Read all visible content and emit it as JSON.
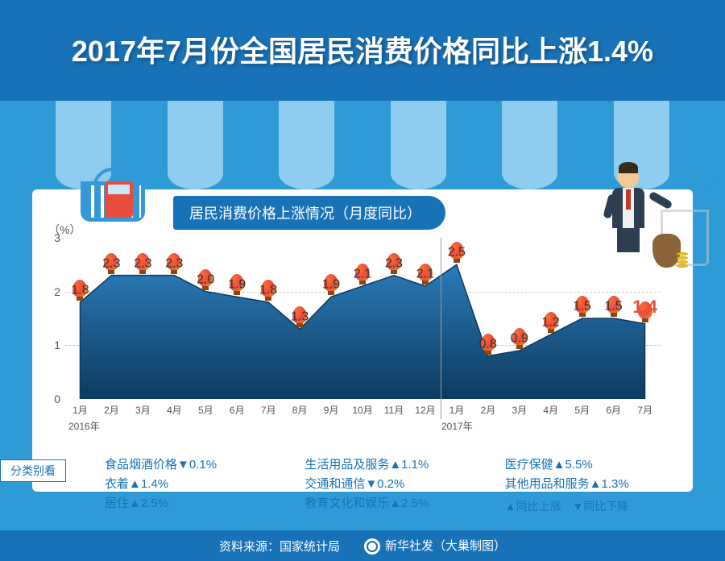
{
  "title": "2017年7月份全国居民消费价格同比上涨1.4%",
  "subtitle": "居民消费价格上涨情况（月度同比）",
  "chart": {
    "type": "area",
    "y_unit": "（%）",
    "ylim": [
      0,
      3
    ],
    "yticks": [
      0,
      1,
      2,
      3
    ],
    "months": [
      "1月",
      "2月",
      "3月",
      "4月",
      "5月",
      "6月",
      "7月",
      "8月",
      "9月",
      "10月",
      "11月",
      "12月",
      "1月",
      "2月",
      "3月",
      "4月",
      "5月",
      "6月",
      "7月"
    ],
    "year_labels": {
      "2016": "2016年",
      "2017": "2017年"
    },
    "values": [
      1.8,
      2.3,
      2.3,
      2.3,
      2.0,
      1.9,
      1.8,
      1.3,
      1.9,
      2.1,
      2.3,
      2.1,
      2.5,
      0.8,
      0.9,
      1.2,
      1.5,
      1.5,
      1.4
    ],
    "highlight_index": 18,
    "area_fill": "#1e5a8e",
    "area_stroke": "#0d3a5e",
    "background": "#ffffff",
    "grid_color": "#cccccc",
    "label_fontsize": 16,
    "highlight_color": "#e74c3c",
    "chart_divider_after_index": 11
  },
  "categories": {
    "label": "分类别看",
    "col1": [
      {
        "name": "食品烟酒价格",
        "dir": "▼",
        "val": "0.1%"
      },
      {
        "name": "衣着",
        "dir": "▲",
        "val": "1.4%"
      },
      {
        "name": "居住",
        "dir": "▲",
        "val": "2.5%"
      }
    ],
    "col2": [
      {
        "name": "生活用品及服务",
        "dir": "▲",
        "val": "1.1%"
      },
      {
        "name": "交通和通信",
        "dir": "▼",
        "val": "0.2%"
      },
      {
        "name": "教育文化和娱乐",
        "dir": "▲",
        "val": "2.5%"
      }
    ],
    "col3": [
      {
        "name": "医疗保健",
        "dir": "▲",
        "val": "5.5%"
      },
      {
        "name": "其他用品和服务",
        "dir": "▲",
        "val": "1.3%"
      }
    ],
    "legend": "▲同比上涨　▼同比下降"
  },
  "footer": {
    "source_label": "资料来源：",
    "source": "国家统计局",
    "publisher": "新华社发（大巢制图）"
  },
  "colors": {
    "primary_blue": "#1872b8",
    "light_blue": "#2e9bd6",
    "stripe_light": "#8fcdf0",
    "accent_red": "#e74c3c"
  }
}
